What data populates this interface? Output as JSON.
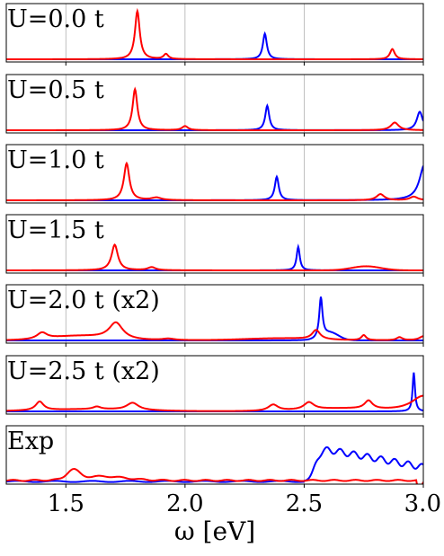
{
  "chart_data": {
    "type": "line",
    "xlabel": "ω [eV]",
    "xlim": [
      1.25,
      3.0
    ],
    "x_ticks": [
      "1.5",
      "2.0",
      "2.5",
      "3.0"
    ],
    "x_tick_values": [
      1.5,
      2.0,
      2.5,
      3.0
    ],
    "grid": "vertical gridlines at x ticks",
    "colors": {
      "red_series": "#ff0000",
      "blue_series": "#0000ff",
      "grid": "#b0b0b0",
      "frame": "#000000"
    },
    "panels": [
      {
        "label": "U=0.0 t",
        "ylim": [
          0,
          1
        ],
        "red_peaks": [
          [
            1.8,
            0.94,
            0.012
          ],
          [
            1.92,
            0.1,
            0.012
          ],
          [
            2.87,
            0.2,
            0.012
          ]
        ],
        "red_broad": [],
        "blue_peaks": [
          [
            2.335,
            0.5,
            0.01
          ]
        ]
      },
      {
        "label": "U=0.5 t",
        "ylim": [
          0,
          1
        ],
        "red_peaks": [
          [
            1.79,
            0.8,
            0.012
          ],
          [
            2.0,
            0.08,
            0.015
          ],
          [
            2.88,
            0.15,
            0.02
          ]
        ],
        "red_broad": [],
        "blue_peaks": [
          [
            2.345,
            0.48,
            0.01
          ],
          [
            2.985,
            0.36,
            0.015
          ]
        ]
      },
      {
        "label": "U=1.0 t",
        "ylim": [
          0,
          1
        ],
        "red_peaks": [
          [
            1.755,
            0.72,
            0.014
          ],
          [
            1.88,
            0.05,
            0.025
          ],
          [
            2.82,
            0.12,
            0.02
          ],
          [
            2.96,
            0.07,
            0.02
          ]
        ],
        "red_broad": [],
        "blue_peaks": [
          [
            2.385,
            0.46,
            0.01
          ],
          [
            3.005,
            0.7,
            0.025
          ]
        ]
      },
      {
        "label": "U=1.5 t",
        "ylim": [
          0,
          1
        ],
        "red_peaks": [
          [
            1.705,
            0.5,
            0.016
          ],
          [
            1.86,
            0.06,
            0.02
          ]
        ],
        "red_broad": [
          [
            2.76,
            0.08,
            0.06
          ]
        ],
        "blue_peaks": [
          [
            2.475,
            0.46,
            0.008
          ]
        ]
      },
      {
        "label": "U=2.0 t (x2)",
        "ylim": [
          0,
          1
        ],
        "red_peaks": [
          [
            1.4,
            0.12,
            0.025
          ],
          [
            1.71,
            0.32,
            0.035
          ],
          [
            1.93,
            0.03,
            0.03
          ],
          [
            2.55,
            0.18,
            0.02
          ],
          [
            2.75,
            0.1,
            0.012
          ],
          [
            2.9,
            0.06,
            0.015
          ],
          [
            3.0,
            0.08,
            0.02
          ]
        ],
        "red_broad": [
          [
            1.55,
            0.08,
            0.12
          ],
          [
            2.4,
            0.04,
            0.15
          ]
        ],
        "blue_peaks": [
          [
            2.57,
            0.78,
            0.008
          ]
        ],
        "blue_broad": [
          [
            2.61,
            0.14,
            0.035
          ]
        ]
      },
      {
        "label": "U=2.5 t (x2)",
        "ylim": [
          0,
          1
        ],
        "red_peaks": [
          [
            1.39,
            0.17,
            0.02
          ],
          [
            1.63,
            0.05,
            0.02
          ],
          [
            1.78,
            0.14,
            0.03
          ],
          [
            2.37,
            0.12,
            0.025
          ],
          [
            2.52,
            0.14,
            0.025
          ],
          [
            2.77,
            0.16,
            0.02
          ],
          [
            3.0,
            0.3,
            0.06
          ]
        ],
        "red_broad": [
          [
            1.6,
            0.04,
            0.2
          ],
          [
            2.65,
            0.05,
            0.15
          ]
        ],
        "blue_peaks": [
          [
            2.96,
            0.76,
            0.006
          ]
        ]
      },
      {
        "label": "Exp",
        "ylim": [
          0,
          1
        ],
        "red_exp": true,
        "blue_exp": true
      }
    ]
  }
}
